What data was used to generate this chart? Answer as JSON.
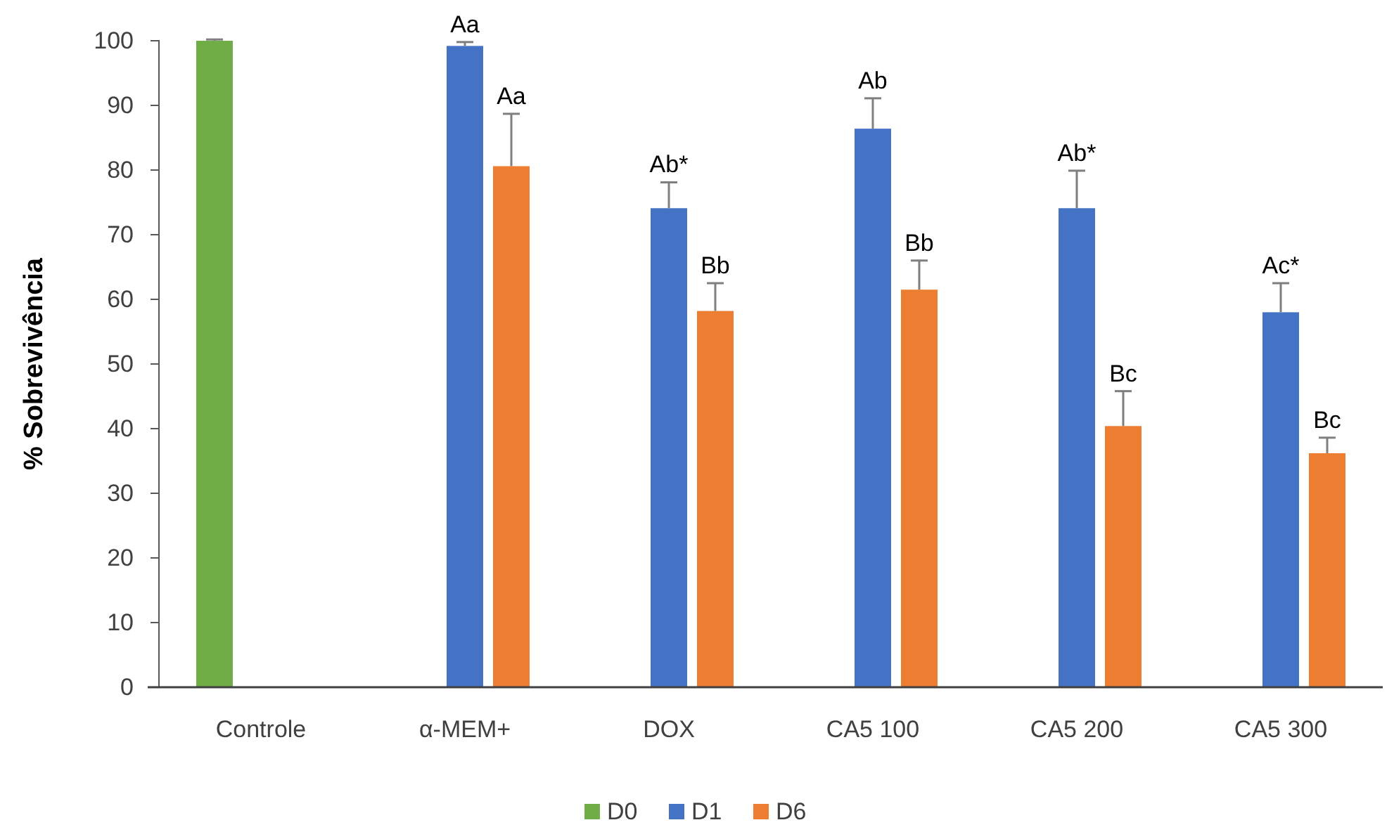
{
  "chart_data": {
    "type": "bar",
    "ylabel": "% Sobrevivência",
    "categories": [
      "Controle",
      "α-MEM+",
      "DOX",
      "CA5 100",
      "CA5 200",
      "CA5 300"
    ],
    "series": [
      {
        "name": "D0",
        "color": "#70ad47",
        "values": [
          100,
          null,
          null,
          null,
          null,
          null
        ],
        "errors": [
          [
            100,
            100.2
          ],
          null,
          null,
          null,
          null,
          null
        ]
      },
      {
        "name": "D1",
        "color": "#4472c4",
        "values": [
          null,
          99.2,
          74.1,
          86.4,
          74.1,
          58.0
        ],
        "errors": [
          null,
          [
            99.2,
            99.8
          ],
          [
            74.1,
            78.1
          ],
          [
            86.4,
            91.1
          ],
          [
            74.1,
            79.9
          ],
          [
            58.0,
            62.5
          ]
        ],
        "value_labels": [
          null,
          "Aa",
          "Ab*",
          "Ab",
          "Ab*",
          "Ac*"
        ]
      },
      {
        "name": "D6",
        "color": "#ed7d31",
        "values": [
          null,
          80.6,
          58.2,
          61.5,
          40.4,
          36.2
        ],
        "errors": [
          null,
          [
            80.6,
            88.7
          ],
          [
            58.2,
            62.5
          ],
          [
            61.5,
            66.0
          ],
          [
            40.4,
            45.8
          ],
          [
            36.2,
            38.6
          ]
        ],
        "value_labels": [
          null,
          "Aa",
          "Bb",
          "Bb",
          "Bc",
          "Bc"
        ]
      }
    ],
    "ylim": [
      0,
      100
    ],
    "yticks": [
      0,
      10,
      20,
      30,
      40,
      50,
      60,
      70,
      80,
      90,
      100
    ],
    "grid": false,
    "legend": "bottom"
  }
}
